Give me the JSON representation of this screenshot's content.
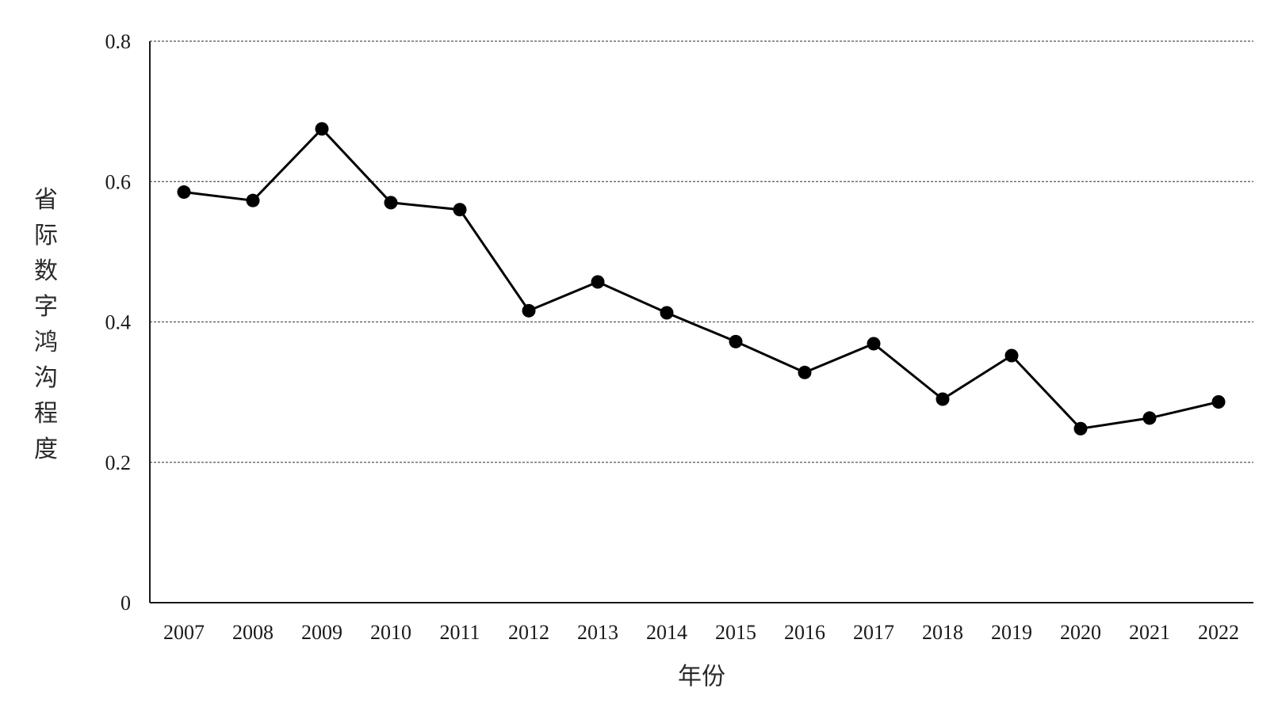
{
  "chart_data": {
    "type": "line",
    "title": "",
    "xlabel": "年份",
    "ylabel": "省际数字鸿沟程度",
    "ylim": [
      0,
      0.8
    ],
    "yticks": [
      0,
      0.2,
      0.4,
      0.6,
      0.8
    ],
    "ytick_labels": [
      "0",
      "0.2",
      "0.4",
      "0.6",
      "0.8"
    ],
    "grid": "horizontal-dashed",
    "legend": "none",
    "categories": [
      "2007",
      "2008",
      "2009",
      "2010",
      "2011",
      "2012",
      "2013",
      "2014",
      "2015",
      "2016",
      "2017",
      "2018",
      "2019",
      "2020",
      "2021",
      "2022"
    ],
    "series": [
      {
        "values": [
          0.585,
          0.573,
          0.675,
          0.57,
          0.56,
          0.416,
          0.457,
          0.413,
          0.372,
          0.328,
          0.369,
          0.29,
          0.352,
          0.248,
          0.263,
          0.286
        ],
        "color": "#000000",
        "marker": "circle"
      }
    ]
  }
}
